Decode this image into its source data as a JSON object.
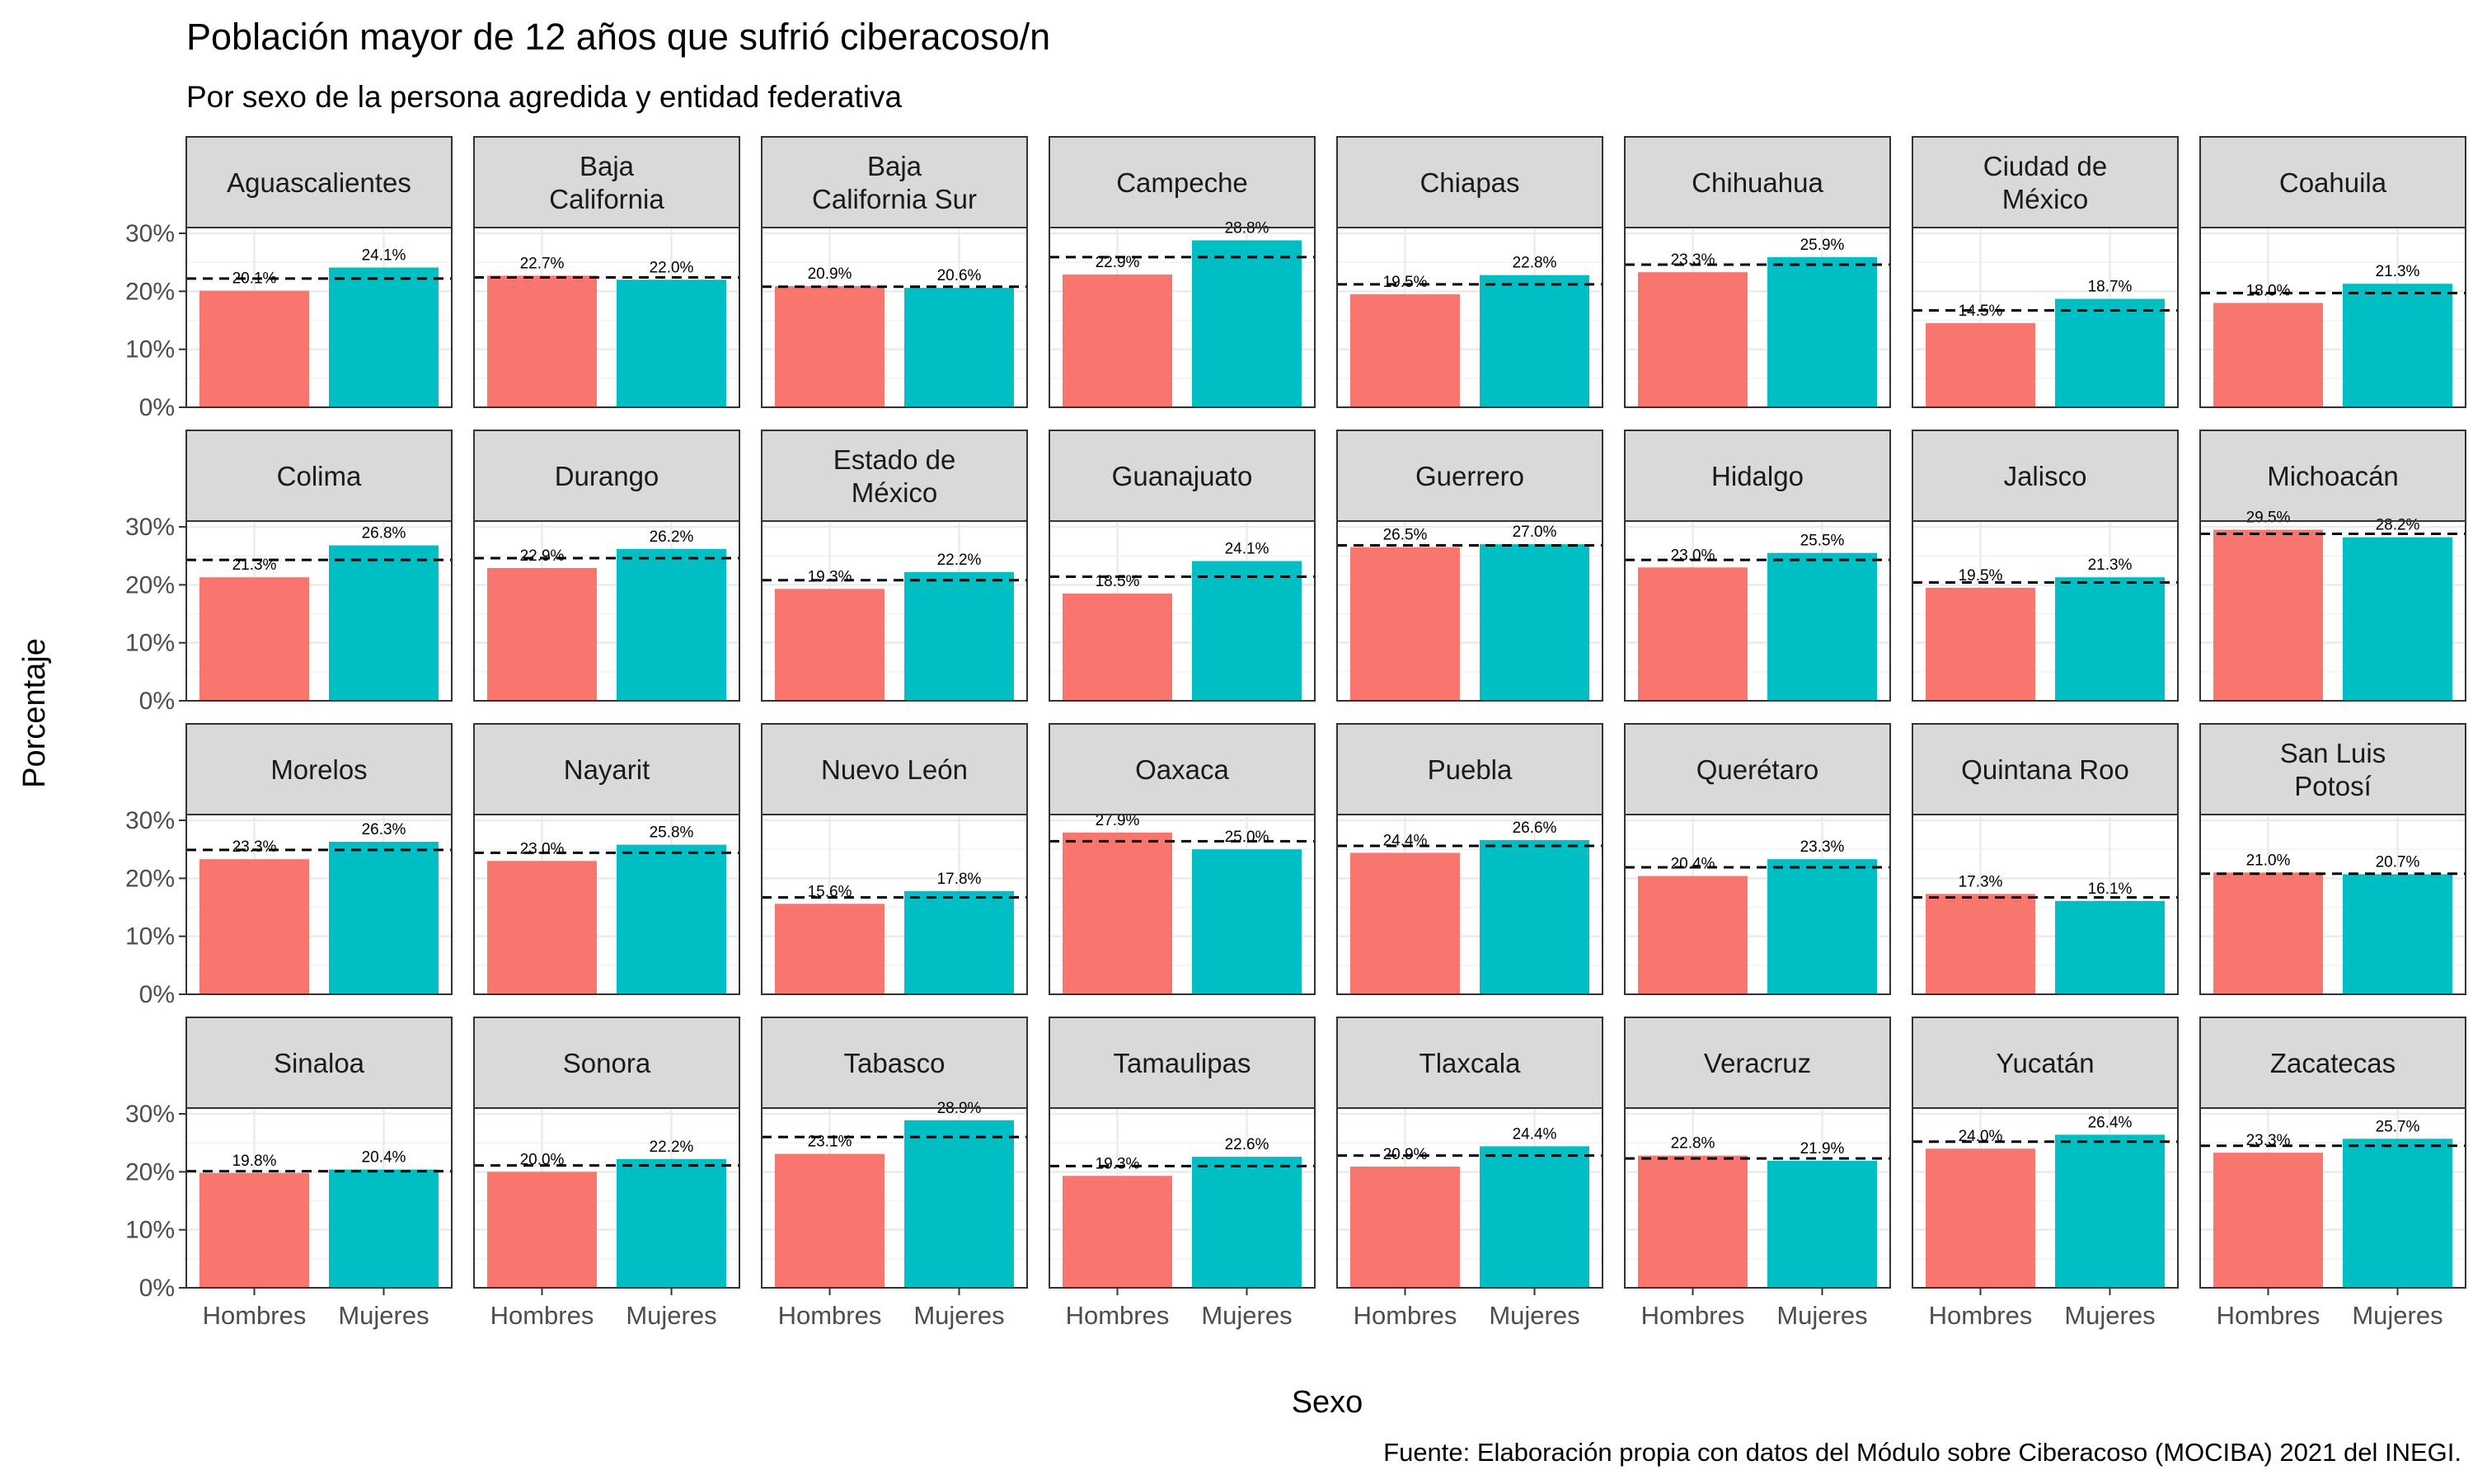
{
  "chart_data": {
    "type": "bar",
    "title": "Población mayor de 12 años que sufrió ciberacoso/n",
    "subtitle": "Por sexo de la persona agredida y entidad federativa",
    "xlabel": "Sexo",
    "ylabel": "Porcentaje",
    "caption": "Fuente: Elaboración propia con datos del Módulo sobre Ciberacoso (MOCIBA) 2021 del INEGI.",
    "categories": [
      "Hombres",
      "Mujeres"
    ],
    "ylim": [
      0,
      31
    ],
    "yticks": [
      "0%",
      "10%",
      "20%",
      "30%"
    ],
    "grid": true,
    "legend": "none",
    "colors": {
      "Hombres": "#F8766D",
      "Mujeres": "#00BFC4"
    },
    "reference_line": "dashed",
    "panels": [
      {
        "state": [
          "Aguascalientes"
        ],
        "values": [
          20.1,
          24.1
        ],
        "labels": [
          "20.1%",
          "24.1%"
        ],
        "ref": 22.2
      },
      {
        "state": [
          "Baja",
          "California"
        ],
        "values": [
          22.7,
          22.0
        ],
        "labels": [
          "22.7%",
          "22.0%"
        ],
        "ref": 22.4
      },
      {
        "state": [
          "Baja",
          "California Sur"
        ],
        "values": [
          20.9,
          20.6
        ],
        "labels": [
          "20.9%",
          "20.6%"
        ],
        "ref": 20.8
      },
      {
        "state": [
          "Campeche"
        ],
        "values": [
          22.9,
          28.8
        ],
        "labels": [
          "22.9%",
          "28.8%"
        ],
        "ref": 25.9
      },
      {
        "state": [
          "Chiapas"
        ],
        "values": [
          19.5,
          22.8
        ],
        "labels": [
          "19.5%",
          "22.8%"
        ],
        "ref": 21.2
      },
      {
        "state": [
          "Chihuahua"
        ],
        "values": [
          23.3,
          25.9
        ],
        "labels": [
          "23.3%",
          "25.9%"
        ],
        "ref": 24.6
      },
      {
        "state": [
          "Ciudad de",
          "México"
        ],
        "values": [
          14.5,
          18.7
        ],
        "labels": [
          "14.5%",
          "18.7%"
        ],
        "ref": 16.7
      },
      {
        "state": [
          "Coahuila"
        ],
        "values": [
          18.0,
          21.3
        ],
        "labels": [
          "18.0%",
          "21.3%"
        ],
        "ref": 19.7
      },
      {
        "state": [
          "Colima"
        ],
        "values": [
          21.3,
          26.8
        ],
        "labels": [
          "21.3%",
          "26.8%"
        ],
        "ref": 24.3
      },
      {
        "state": [
          "Durango"
        ],
        "values": [
          22.9,
          26.2
        ],
        "labels": [
          "22.9%",
          "26.2%"
        ],
        "ref": 24.6
      },
      {
        "state": [
          "Estado de",
          "México"
        ],
        "values": [
          19.3,
          22.2
        ],
        "labels": [
          "19.3%",
          "22.2%"
        ],
        "ref": 20.8
      },
      {
        "state": [
          "Guanajuato"
        ],
        "values": [
          18.5,
          24.1
        ],
        "labels": [
          "18.5%",
          "24.1%"
        ],
        "ref": 21.4
      },
      {
        "state": [
          "Guerrero"
        ],
        "values": [
          26.5,
          27.0
        ],
        "labels": [
          "26.5%",
          "27.0%"
        ],
        "ref": 26.8
      },
      {
        "state": [
          "Hidalgo"
        ],
        "values": [
          23.0,
          25.5
        ],
        "labels": [
          "23.0%",
          "25.5%"
        ],
        "ref": 24.3
      },
      {
        "state": [
          "Jalisco"
        ],
        "values": [
          19.5,
          21.3
        ],
        "labels": [
          "19.5%",
          "21.3%"
        ],
        "ref": 20.4
      },
      {
        "state": [
          "Michoacán"
        ],
        "values": [
          29.5,
          28.2
        ],
        "labels": [
          "29.5%",
          "28.2%"
        ],
        "ref": 28.8
      },
      {
        "state": [
          "Morelos"
        ],
        "values": [
          23.3,
          26.3
        ],
        "labels": [
          "23.3%",
          "26.3%"
        ],
        "ref": 24.9
      },
      {
        "state": [
          "Nayarit"
        ],
        "values": [
          23.0,
          25.8
        ],
        "labels": [
          "23.0%",
          "25.8%"
        ],
        "ref": 24.4
      },
      {
        "state": [
          "Nuevo León"
        ],
        "values": [
          15.6,
          17.8
        ],
        "labels": [
          "15.6%",
          "17.8%"
        ],
        "ref": 16.7
      },
      {
        "state": [
          "Oaxaca"
        ],
        "values": [
          27.9,
          25.0
        ],
        "labels": [
          "27.9%",
          "25.0%"
        ],
        "ref": 26.4
      },
      {
        "state": [
          "Puebla"
        ],
        "values": [
          24.4,
          26.6
        ],
        "labels": [
          "24.4%",
          "26.6%"
        ],
        "ref": 25.6
      },
      {
        "state": [
          "Querétaro"
        ],
        "values": [
          20.4,
          23.3
        ],
        "labels": [
          "20.4%",
          "23.3%"
        ],
        "ref": 21.9
      },
      {
        "state": [
          "Quintana Roo"
        ],
        "values": [
          17.3,
          16.1
        ],
        "labels": [
          "17.3%",
          "16.1%"
        ],
        "ref": 16.7
      },
      {
        "state": [
          "San Luis",
          "Potosí"
        ],
        "values": [
          21.0,
          20.7
        ],
        "labels": [
          "21.0%",
          "20.7%"
        ],
        "ref": 20.8
      },
      {
        "state": [
          "Sinaloa"
        ],
        "values": [
          19.8,
          20.4
        ],
        "labels": [
          "19.8%",
          "20.4%"
        ],
        "ref": 20.1
      },
      {
        "state": [
          "Sonora"
        ],
        "values": [
          20.0,
          22.2
        ],
        "labels": [
          "20.0%",
          "22.2%"
        ],
        "ref": 21.1
      },
      {
        "state": [
          "Tabasco"
        ],
        "values": [
          23.1,
          28.9
        ],
        "labels": [
          "23.1%",
          "28.9%"
        ],
        "ref": 26.0
      },
      {
        "state": [
          "Tamaulipas"
        ],
        "values": [
          19.3,
          22.6
        ],
        "labels": [
          "19.3%",
          "22.6%"
        ],
        "ref": 21.0
      },
      {
        "state": [
          "Tlaxcala"
        ],
        "values": [
          20.9,
          24.4
        ],
        "labels": [
          "20.9%",
          "24.4%"
        ],
        "ref": 22.8
      },
      {
        "state": [
          "Veracruz"
        ],
        "values": [
          22.8,
          21.9
        ],
        "labels": [
          "22.8%",
          "21.9%"
        ],
        "ref": 22.3
      },
      {
        "state": [
          "Yucatán"
        ],
        "values": [
          24.0,
          26.4
        ],
        "labels": [
          "24.0%",
          "26.4%"
        ],
        "ref": 25.2
      },
      {
        "state": [
          "Zacatecas"
        ],
        "values": [
          23.3,
          25.7
        ],
        "labels": [
          "23.3%",
          "25.7%"
        ],
        "ref": 24.5
      }
    ]
  }
}
